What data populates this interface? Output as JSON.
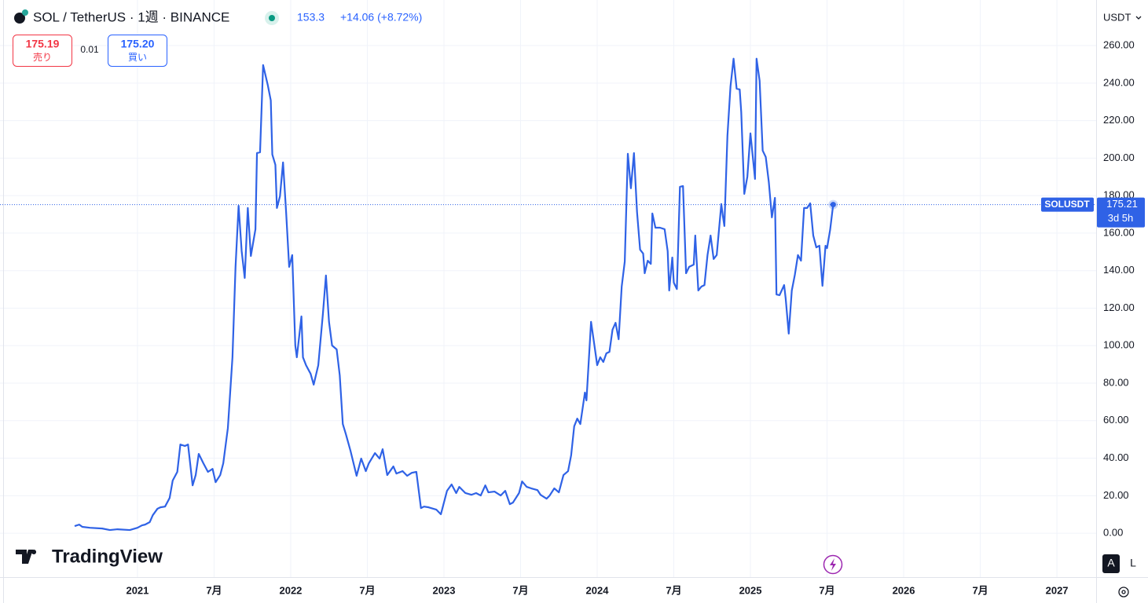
{
  "chart_data": {
    "type": "line",
    "title": "SOL / TetherUS · 1週 · BINANCE",
    "change": "+14.06 (+8.72%)",
    "bid": "175.19",
    "bid_label": "売り",
    "spread": 0.01,
    "ask": "175.20",
    "ask_label": "買い",
    "currency": "USDT",
    "countdown": "3d 5h",
    "brand": "TradingView",
    "scale_buttons": [
      "A",
      "L"
    ],
    "grid": true,
    "xlim": [
      2020.103,
      2027.256
    ],
    "xticks": [
      {
        "value": 2021,
        "label": "2021"
      },
      {
        "value": 2021.5,
        "label": "7月"
      },
      {
        "value": 2022,
        "label": "2022"
      },
      {
        "value": 2022.5,
        "label": "7月"
      },
      {
        "value": 2023,
        "label": "2023"
      },
      {
        "value": 2023.5,
        "label": "7月"
      },
      {
        "value": 2024,
        "label": "2024"
      },
      {
        "value": 2024.5,
        "label": "7月"
      },
      {
        "value": 2025,
        "label": "2025"
      },
      {
        "value": 2025.5,
        "label": "7月"
      },
      {
        "value": 2026,
        "label": "2026"
      },
      {
        "value": 2026.5,
        "label": "7月"
      },
      {
        "value": 2027,
        "label": "2027"
      }
    ],
    "ylim": [
      -23.4,
      284.3
    ],
    "yticks": [
      {
        "value": 0,
        "label": "0.00"
      },
      {
        "value": 20,
        "label": "20.00"
      },
      {
        "value": 40,
        "label": "40.00"
      },
      {
        "value": 60,
        "label": "60.00"
      },
      {
        "value": 80,
        "label": "80.00"
      },
      {
        "value": 100,
        "label": "100.00"
      },
      {
        "value": 120,
        "label": "120.00"
      },
      {
        "value": 140,
        "label": "140.00"
      },
      {
        "value": 160,
        "label": "160.00"
      },
      {
        "value": 180,
        "label": "180.00"
      },
      {
        "value": 200,
        "label": "200.00"
      },
      {
        "value": 220,
        "label": "220.00"
      },
      {
        "value": 240,
        "label": "240.00"
      },
      {
        "value": 260,
        "label": "260.00"
      }
    ],
    "x": [
      2020.59,
      2020.62,
      2020.64,
      2020.69,
      2020.77,
      2020.82,
      2020.87,
      2020.95,
      2021.0,
      2021.03,
      2021.05,
      2021.08,
      2021.1,
      2021.13,
      2021.15,
      2021.18,
      2021.21,
      2021.23,
      2021.26,
      2021.28,
      2021.31,
      2021.33,
      2021.36,
      2021.38,
      2021.4,
      2021.43,
      2021.46,
      2021.49,
      2021.51,
      2021.54,
      2021.56,
      2021.59,
      2021.62,
      2021.64,
      2021.66,
      2021.68,
      2021.7,
      2021.72,
      2021.74,
      2021.77,
      2021.78,
      2021.8,
      2021.82,
      2021.85,
      2021.87,
      2021.88,
      2021.9,
      2021.91,
      2021.93,
      2021.95,
      2021.97,
      2021.99,
      2022.01,
      2022.03,
      2022.04,
      2022.07,
      2022.08,
      2022.1,
      2022.13,
      2022.15,
      2022.18,
      2022.21,
      2022.23,
      2022.25,
      2022.27,
      2022.3,
      2022.32,
      2022.34,
      2022.36,
      2022.39,
      2022.43,
      2022.46,
      2022.49,
      2022.51,
      2022.55,
      2022.58,
      2022.6,
      2022.63,
      2022.67,
      2022.69,
      2022.73,
      2022.76,
      2022.79,
      2022.82,
      2022.85,
      2022.87,
      2022.9,
      2022.95,
      2022.98,
      2023.02,
      2023.05,
      2023.08,
      2023.1,
      2023.14,
      2023.18,
      2023.21,
      2023.24,
      2023.27,
      2023.29,
      2023.33,
      2023.37,
      2023.4,
      2023.43,
      2023.45,
      2023.49,
      2023.51,
      2023.54,
      2023.57,
      2023.61,
      2023.63,
      2023.67,
      2023.69,
      2023.72,
      2023.75,
      2023.78,
      2023.81,
      2023.83,
      2023.85,
      2023.87,
      2023.89,
      2023.92,
      2023.93,
      2023.96,
      2023.98,
      2024.0,
      2024.02,
      2024.04,
      2024.06,
      2024.08,
      2024.1,
      2024.12,
      2024.14,
      2024.16,
      2024.18,
      2024.2,
      2024.22,
      2024.24,
      2024.26,
      2024.28,
      2024.3,
      2024.31,
      2024.33,
      2024.35,
      2024.36,
      2024.38,
      2024.41,
      2024.44,
      2024.46,
      2024.47,
      2024.49,
      2024.5,
      2024.52,
      2024.54,
      2024.56,
      2024.58,
      2024.6,
      2024.63,
      2024.64,
      2024.66,
      2024.68,
      2024.7,
      2024.72,
      2024.74,
      2024.76,
      2024.78,
      2024.81,
      2024.82,
      2024.83,
      2024.85,
      2024.87,
      2024.89,
      2024.91,
      2024.93,
      2024.94,
      2024.96,
      2024.98,
      2025.0,
      2025.03,
      2025.04,
      2025.06,
      2025.08,
      2025.1,
      2025.12,
      2025.14,
      2025.16,
      2025.17,
      2025.19,
      2025.22,
      2025.23,
      2025.25,
      2025.27,
      2025.29,
      2025.31,
      2025.33,
      2025.35,
      2025.37,
      2025.39,
      2025.41,
      2025.43,
      2025.45,
      2025.47,
      2025.49,
      2025.5,
      2025.52,
      2025.54
    ],
    "series": [
      {
        "name": "SOLUSDT",
        "color": "#2f62e6",
        "values": [
          3.8,
          4.6,
          3.4,
          2.9,
          2.5,
          1.7,
          2.1,
          1.7,
          2.9,
          4.2,
          4.6,
          5.9,
          9.6,
          13.0,
          13.8,
          14.2,
          18.8,
          28.1,
          32.7,
          47.3,
          46.5,
          47.3,
          25.5,
          31.0,
          42.3,
          37.3,
          32.7,
          34.3,
          27.2,
          31.0,
          37.3,
          56.1,
          93.8,
          142.0,
          174.6,
          150.4,
          136.1,
          173.4,
          147.8,
          162.1,
          202.7,
          203.1,
          249.6,
          239.1,
          230.8,
          201.9,
          196.4,
          173.4,
          179.7,
          197.7,
          171.3,
          142.0,
          148.3,
          100.1,
          93.8,
          115.6,
          93.8,
          89.6,
          85.0,
          79.2,
          89.6,
          116.8,
          137.4,
          112.7,
          100.1,
          98.0,
          84.2,
          58.2,
          52.8,
          44.0,
          30.6,
          39.8,
          33.1,
          37.3,
          42.7,
          39.8,
          44.8,
          31.0,
          35.6,
          31.8,
          33.1,
          30.6,
          32.2,
          32.7,
          13.4,
          14.2,
          13.8,
          12.6,
          10.1,
          22.6,
          26.0,
          21.4,
          24.7,
          21.4,
          20.5,
          21.4,
          20.1,
          25.5,
          21.8,
          22.2,
          20.1,
          22.6,
          15.5,
          16.3,
          21.4,
          27.6,
          24.7,
          23.9,
          23.0,
          20.5,
          18.4,
          20.1,
          23.9,
          21.8,
          31.0,
          33.1,
          41.5,
          57.0,
          61.1,
          58.2,
          75.0,
          70.8,
          112.7,
          101.3,
          89.6,
          93.8,
          91.3,
          95.9,
          96.7,
          108.5,
          112.2,
          103.4,
          131.5,
          144.9,
          202.3,
          183.9,
          202.7,
          171.3,
          151.2,
          149.1,
          138.6,
          145.3,
          143.6,
          170.5,
          162.9,
          162.9,
          162.1,
          150.4,
          129.4,
          147.0,
          133.6,
          130.2,
          184.7,
          185.1,
          138.6,
          142.0,
          143.2,
          158.7,
          129.4,
          131.5,
          132.3,
          148.3,
          158.7,
          146.2,
          148.3,
          175.5,
          169.2,
          163.8,
          211.9,
          238.3,
          253.0,
          237.0,
          236.6,
          224.5,
          180.9,
          190.1,
          213.2,
          188.9,
          253.0,
          241.2,
          204.0,
          200.6,
          187.2,
          168.4,
          178.8,
          127.3,
          126.9,
          132.3,
          125.2,
          106.4,
          129.4,
          137.8,
          148.3,
          145.3,
          173.4,
          173.4,
          175.9,
          158.7,
          152.4,
          153.3,
          131.9,
          153.3,
          152.0,
          161.7,
          175.21
        ]
      }
    ]
  }
}
